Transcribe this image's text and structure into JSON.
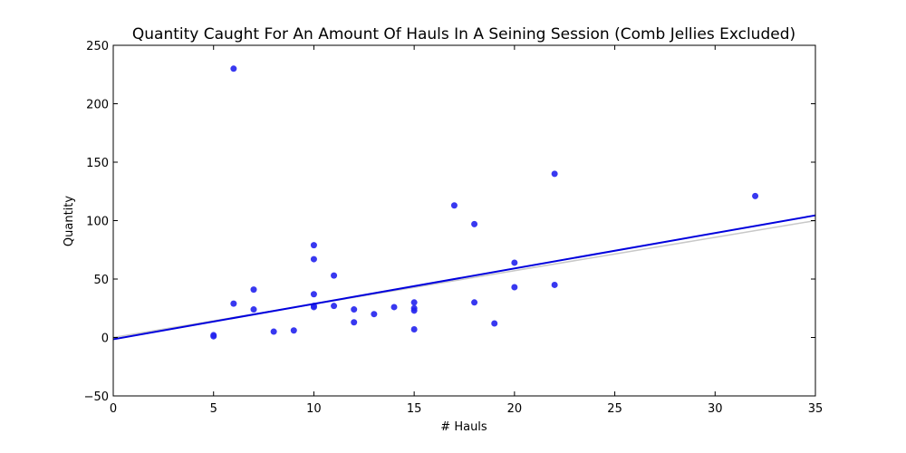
{
  "chart_data": {
    "type": "scatter",
    "title": "Quantity Caught For An Amount Of Hauls In A Seining Session (Comb Jellies Excluded)",
    "xlabel": "# Hauls",
    "ylabel": "Quantity",
    "xlim": [
      0,
      35
    ],
    "ylim": [
      -50,
      250
    ],
    "xticks": [
      "0",
      "5",
      "10",
      "15",
      "20",
      "25",
      "30",
      "35"
    ],
    "yticks": [
      "−50",
      "0",
      "50",
      "100",
      "150",
      "200",
      "250"
    ],
    "xtick_values": [
      0,
      5,
      10,
      15,
      20,
      25,
      30,
      35
    ],
    "ytick_values": [
      -50,
      0,
      50,
      100,
      150,
      200,
      250
    ],
    "grid": false,
    "point_color": "#2222ee",
    "line_color": "#0000dd",
    "ref_line_color": "#c8c8c8",
    "points": [
      {
        "x": 5,
        "y": 2
      },
      {
        "x": 5,
        "y": 1
      },
      {
        "x": 6,
        "y": 230
      },
      {
        "x": 6,
        "y": 29
      },
      {
        "x": 7,
        "y": 41
      },
      {
        "x": 7,
        "y": 24
      },
      {
        "x": 8,
        "y": 5
      },
      {
        "x": 9,
        "y": 6
      },
      {
        "x": 10,
        "y": 79
      },
      {
        "x": 10,
        "y": 67
      },
      {
        "x": 10,
        "y": 37
      },
      {
        "x": 10,
        "y": 27
      },
      {
        "x": 10,
        "y": 26
      },
      {
        "x": 11,
        "y": 53
      },
      {
        "x": 11,
        "y": 27
      },
      {
        "x": 12,
        "y": 24
      },
      {
        "x": 12,
        "y": 13
      },
      {
        "x": 13,
        "y": 20
      },
      {
        "x": 14,
        "y": 26
      },
      {
        "x": 15,
        "y": 30
      },
      {
        "x": 15,
        "y": 25
      },
      {
        "x": 15,
        "y": 23
      },
      {
        "x": 15,
        "y": 7
      },
      {
        "x": 17,
        "y": 113
      },
      {
        "x": 18,
        "y": 97
      },
      {
        "x": 18,
        "y": 30
      },
      {
        "x": 19,
        "y": 12
      },
      {
        "x": 20,
        "y": 64
      },
      {
        "x": 20,
        "y": 43
      },
      {
        "x": 22,
        "y": 140
      },
      {
        "x": 22,
        "y": 45
      },
      {
        "x": 32,
        "y": 121
      }
    ],
    "fit_line": {
      "x": [
        0,
        35
      ],
      "y": [
        -1.5,
        104.5
      ]
    },
    "ref_line": {
      "x": [
        0,
        35
      ],
      "y": [
        0,
        100
      ]
    }
  }
}
